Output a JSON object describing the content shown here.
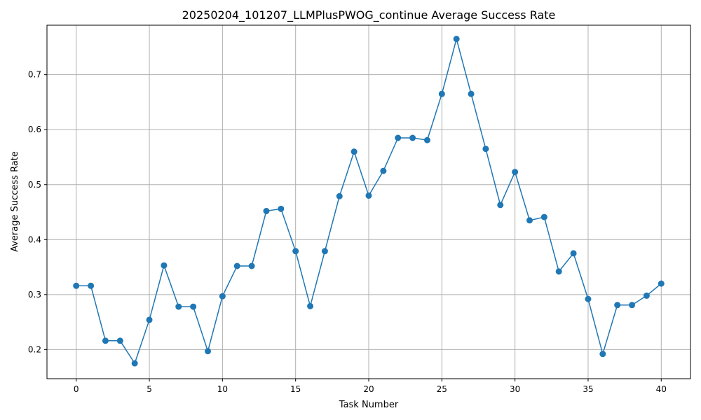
{
  "chart_data": {
    "type": "line",
    "title": "20250204_101207_LLMPlusPWOG_continue Average Success Rate",
    "xlabel": "Task Number",
    "ylabel": "Average Success Rate",
    "xlim": [
      -2,
      42
    ],
    "ylim": [
      0.147,
      0.79
    ],
    "xticks": [
      0,
      5,
      10,
      15,
      20,
      25,
      30,
      35,
      40
    ],
    "yticks": [
      0.2,
      0.3,
      0.4,
      0.5,
      0.6,
      0.7
    ],
    "grid": true,
    "color": "#1f77b4",
    "marker": "circle",
    "x": [
      0,
      1,
      2,
      3,
      4,
      5,
      6,
      7,
      8,
      9,
      10,
      11,
      12,
      13,
      14,
      15,
      16,
      17,
      18,
      19,
      20,
      21,
      22,
      23,
      24,
      25,
      26,
      27,
      28,
      29,
      30,
      31,
      32,
      33,
      34,
      35,
      36,
      37,
      38,
      39,
      40
    ],
    "y": [
      0.316,
      0.316,
      0.216,
      0.216,
      0.175,
      0.254,
      0.353,
      0.278,
      0.278,
      0.197,
      0.297,
      0.352,
      0.352,
      0.452,
      0.456,
      0.379,
      0.279,
      0.379,
      0.479,
      0.56,
      0.48,
      0.525,
      0.585,
      0.585,
      0.581,
      0.665,
      0.765,
      0.665,
      0.565,
      0.463,
      0.523,
      0.435,
      0.441,
      0.342,
      0.375,
      0.292,
      0.192,
      0.281,
      0.281,
      0.298,
      0.32
    ]
  }
}
